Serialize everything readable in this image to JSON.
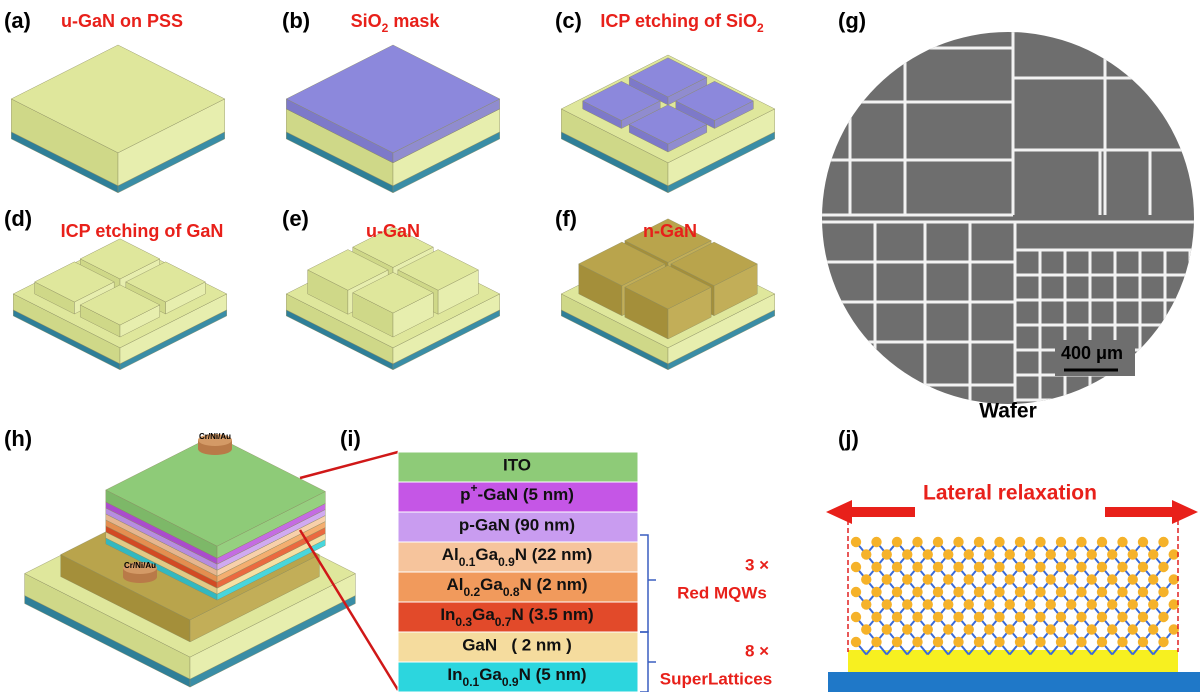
{
  "panels": [
    {
      "label": "(a)",
      "title": [
        "u-GaN on PSS"
      ]
    },
    {
      "label": "(b)",
      "title": [
        "SiO",
        "2",
        " mask"
      ]
    },
    {
      "label": "(c)",
      "title": [
        "ICP etching of SiO",
        "2"
      ]
    },
    {
      "label": "(d)",
      "title": [
        "ICP etching of GaN"
      ]
    },
    {
      "label": "(e)",
      "title": [
        "u-GaN"
      ]
    },
    {
      "label": "(f)",
      "title": [
        "n-GaN"
      ]
    },
    {
      "label": "(g)",
      "scale_bar": "400 μm",
      "caption": "Wafer"
    },
    {
      "label": "(h)",
      "contacts": [
        "Cr/Ni/Au",
        "Cr/Ni/Au"
      ]
    },
    {
      "label": "(i)",
      "layers": [
        [
          "ITO"
        ],
        [
          "p",
          "+",
          "-GaN (5 nm)"
        ],
        [
          "p-GaN (90 nm)"
        ],
        [
          "Al",
          "0.1",
          "Ga",
          "0.9",
          "N (22 nm)"
        ],
        [
          "Al",
          "0.2",
          "Ga",
          "0.8",
          "N (2 nm)"
        ],
        [
          "In",
          "0.3",
          "Ga",
          "0.7",
          "N (3.5 nm)"
        ],
        [
          "GaN   ( 2 nm )"
        ],
        [
          "In",
          "0.1",
          "Ga",
          "0.9",
          "N (5 nm)"
        ]
      ],
      "groups": [
        [
          "3 ×",
          "Red MQWs"
        ],
        [
          "8 ×",
          "SuperLattices"
        ]
      ]
    },
    {
      "label": "(j)",
      "title": "Lateral relaxation"
    }
  ]
}
